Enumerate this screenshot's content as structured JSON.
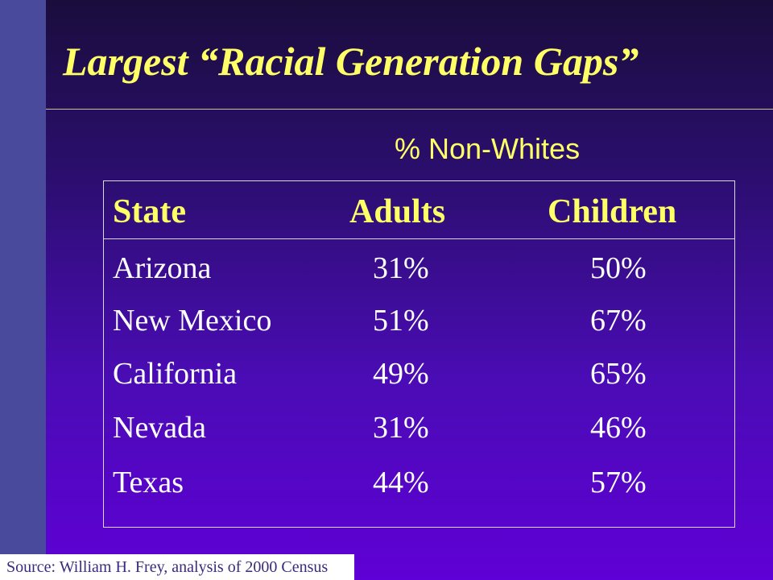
{
  "slide": {
    "title": "Largest “Racial Generation Gaps”",
    "subtitle": "% Non-Whites",
    "source": "Source: William H. Frey, analysis of 2000 Census",
    "colors": {
      "background_top": "#1a0d3c",
      "background_bottom": "#5f00d6",
      "side_bar": "#4a4a9c",
      "title_text": "#ffff66",
      "body_text": "#ffffff"
    }
  },
  "table": {
    "headers": [
      "State",
      "Adults",
      "Children"
    ],
    "rows": [
      [
        "Arizona",
        "31%",
        "50%"
      ],
      [
        "New Mexico",
        "51%",
        "67%"
      ],
      [
        "California",
        "49%",
        "65%"
      ],
      [
        "Nevada",
        "31%",
        "46%"
      ],
      [
        "Texas",
        "44%",
        "57%"
      ]
    ]
  }
}
